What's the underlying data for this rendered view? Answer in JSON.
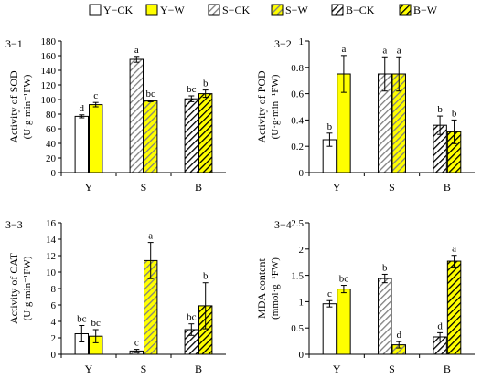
{
  "legend": [
    {
      "label": "Y−CK",
      "fill": "#ffffff",
      "pattern": "none"
    },
    {
      "label": "Y−W",
      "fill": "#ffff00",
      "pattern": "none"
    },
    {
      "label": "S−CK",
      "fill": "#ffffff",
      "pattern": "hatch-gray"
    },
    {
      "label": "S−W",
      "fill": "#ffff00",
      "pattern": "hatch-gray"
    },
    {
      "label": "B−CK",
      "fill": "#ffffff",
      "pattern": "hatch-black"
    },
    {
      "label": "B−W",
      "fill": "#ffff00",
      "pattern": "hatch-black"
    }
  ],
  "colors": {
    "yellow": "#ffff00",
    "hatch_gray": "#7f7f7f",
    "hatch_black": "#000000",
    "axis": "#000000"
  },
  "chart_data": [
    {
      "panel": "3−1",
      "type": "bar",
      "ylabel_line1": "Activity of SOD",
      "ylabel_line2": "(U·g·min⁻¹FW)",
      "categories": [
        "Y",
        "S",
        "B"
      ],
      "ylim": [
        0,
        180
      ],
      "yticks": [
        0,
        20,
        40,
        60,
        80,
        100,
        120,
        140,
        160,
        180
      ],
      "series": [
        {
          "name": "CK",
          "values": [
            77,
            155,
            101
          ],
          "errors": [
            2,
            4,
            4
          ],
          "letters": [
            "d",
            "a",
            "bc"
          ]
        },
        {
          "name": "W",
          "values": [
            93,
            98,
            108
          ],
          "errors": [
            3,
            1,
            5
          ],
          "letters": [
            "c",
            "bc",
            "b"
          ]
        }
      ]
    },
    {
      "panel": "3−2",
      "type": "bar",
      "ylabel_line1": "Activity of POD",
      "ylabel_line2": "(U·g·min⁻¹FW)",
      "categories": [
        "Y",
        "S",
        "B"
      ],
      "ylim": [
        0,
        1
      ],
      "yticks": [
        0,
        0.2,
        0.4,
        0.6,
        0.8,
        1
      ],
      "series": [
        {
          "name": "CK",
          "values": [
            0.25,
            0.75,
            0.36
          ],
          "errors": [
            0.05,
            0.13,
            0.07
          ],
          "letters": [
            "b",
            "a",
            "b"
          ]
        },
        {
          "name": "W",
          "values": [
            0.75,
            0.75,
            0.31
          ],
          "errors": [
            0.14,
            0.13,
            0.09
          ],
          "letters": [
            "a",
            "a",
            "b"
          ]
        }
      ]
    },
    {
      "panel": "3−3",
      "type": "bar",
      "ylabel_line1": "Activity of CAT",
      "ylabel_line2": "(U·g·min⁻¹FW)",
      "categories": [
        "Y",
        "S",
        "B"
      ],
      "ylim": [
        0,
        16
      ],
      "yticks": [
        0,
        2,
        4,
        6,
        8,
        10,
        12,
        14,
        16
      ],
      "series": [
        {
          "name": "CK",
          "values": [
            2.5,
            0.4,
            3.0
          ],
          "errors": [
            1.0,
            0.2,
            0.7
          ],
          "letters": [
            "bc",
            "c",
            "bc"
          ]
        },
        {
          "name": "W",
          "values": [
            2.2,
            11.4,
            5.9
          ],
          "errors": [
            0.8,
            2.2,
            2.8
          ],
          "letters": [
            "bc",
            "a",
            "b"
          ]
        }
      ]
    },
    {
      "panel": "3−4",
      "type": "bar",
      "ylabel_line1": "MDA content",
      "ylabel_line2": "(mmol·g⁻¹FW)",
      "categories": [
        "Y",
        "S",
        "B"
      ],
      "ylim": [
        0,
        2.5
      ],
      "yticks": [
        0,
        0.5,
        1,
        1.5,
        2,
        2.5
      ],
      "series": [
        {
          "name": "CK",
          "values": [
            0.96,
            1.44,
            0.33
          ],
          "errors": [
            0.06,
            0.08,
            0.08
          ],
          "letters": [
            "c",
            "b",
            "d"
          ]
        },
        {
          "name": "W",
          "values": [
            1.24,
            0.18,
            1.77
          ],
          "errors": [
            0.07,
            0.06,
            0.11
          ],
          "letters": [
            "bc",
            "d",
            "a"
          ]
        }
      ]
    }
  ]
}
